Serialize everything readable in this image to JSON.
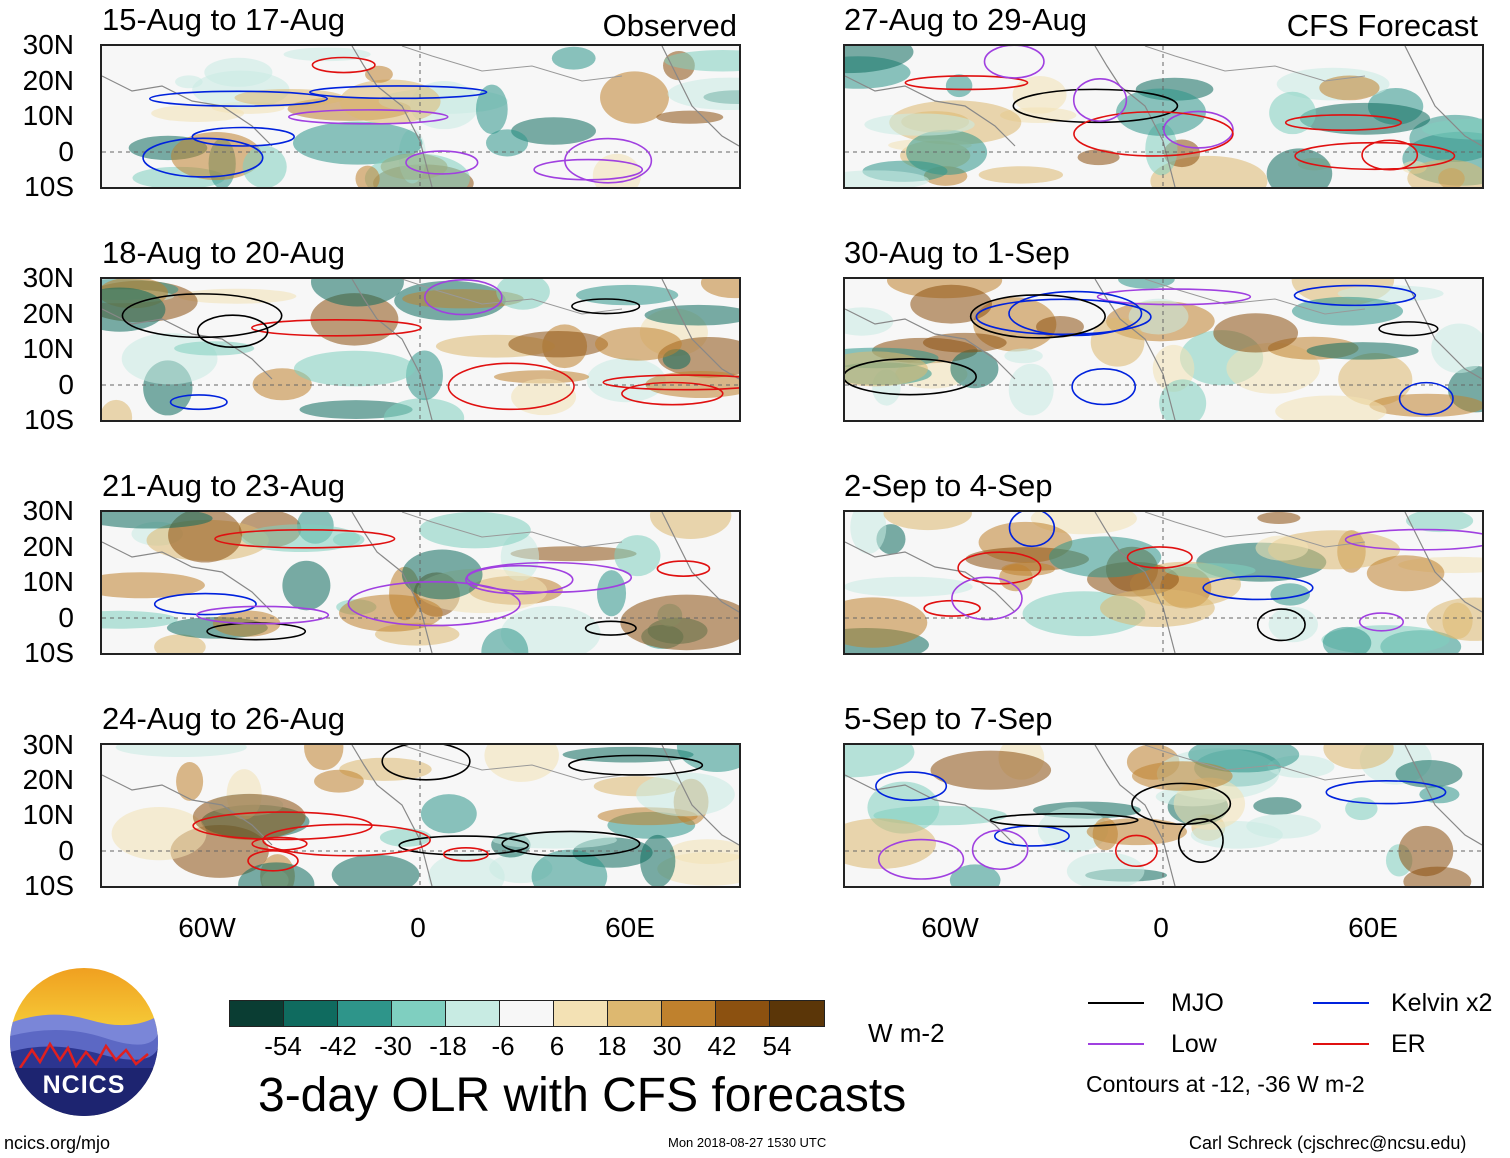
{
  "panels": [
    {
      "date_range": "15-Aug to 17-Aug",
      "label": "Observed"
    },
    {
      "date_range": "27-Aug to 29-Aug",
      "label": "CFS Forecast"
    },
    {
      "date_range": "18-Aug to 20-Aug",
      "label": ""
    },
    {
      "date_range": "30-Aug to 1-Sep",
      "label": ""
    },
    {
      "date_range": "21-Aug to 23-Aug",
      "label": ""
    },
    {
      "date_range": "2-Sep to 4-Sep",
      "label": ""
    },
    {
      "date_range": "24-Aug to 26-Aug",
      "label": ""
    },
    {
      "date_range": "5-Sep to 7-Sep",
      "label": ""
    }
  ],
  "y_axis_labels": [
    "30N",
    "20N",
    "10N",
    "0",
    "10S"
  ],
  "x_axis_labels": [
    "60W",
    "0",
    "60E"
  ],
  "colorbar": {
    "ticks": [
      "-54",
      "-42",
      "-30",
      "-18",
      "-6",
      "6",
      "18",
      "30",
      "42",
      "54"
    ],
    "colors": [
      "#0a3d33",
      "#0f6b5f",
      "#2e958a",
      "#7fcfc0",
      "#c8ebe3",
      "#f7f7f7",
      "#f3e1b4",
      "#ddb870",
      "#bf812d",
      "#8c5110",
      "#5b3608"
    ],
    "units": "W m-2"
  },
  "title": "3-day OLR with CFS forecasts",
  "legend": {
    "items": [
      {
        "label": "MJO",
        "color": "#000000"
      },
      {
        "label": "Kelvin x2",
        "color": "#0022dd"
      },
      {
        "label": "Low",
        "color": "#a040e0"
      },
      {
        "label": "ER",
        "color": "#e01010"
      }
    ],
    "note": "Contours at -12, -36 W m-2"
  },
  "logo_text": "NCICS",
  "footer": {
    "left": "ncics.org/mjo",
    "center": "Mon 2018-08-27 1530 UTC",
    "right": "Carl Schreck (cjschrec@ncsu.edu)"
  }
}
